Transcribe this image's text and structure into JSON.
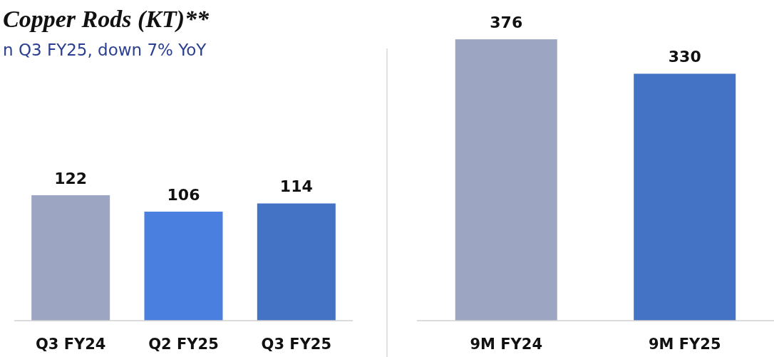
{
  "chart_data": [
    {
      "type": "bar",
      "title": "Copper Rods (KT)**",
      "subtitle": "n Q3 FY25, down 7% YoY",
      "categories": [
        "Q3 FY24",
        "Q2 FY25",
        "Q3 FY25"
      ],
      "values": [
        122,
        106,
        114
      ],
      "colors": [
        "#9ca5c2",
        "#4a7fe0",
        "#4472c4"
      ],
      "data_labels": true
    },
    {
      "type": "bar",
      "categories": [
        "9M FY24",
        "9M FY25"
      ],
      "values": [
        376,
        330
      ],
      "colors": [
        "#9ca5c2",
        "#4472c4"
      ],
      "data_labels": true
    }
  ]
}
